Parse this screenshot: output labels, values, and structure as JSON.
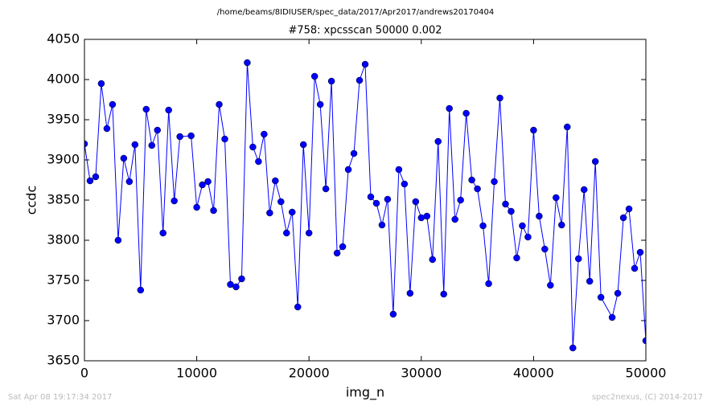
{
  "chart_data": {
    "type": "line",
    "suptitle": "/home/beams/8IDIUSER/spec_data/2017/Apr2017/andrews20170404",
    "title": "#758: xpcsscan 50000 0.002",
    "xlabel": "img_n",
    "ylabel": "ccdc",
    "timestamp": "Sat Apr 08 19:17:34 2017",
    "credit": "spec2nexus, (C) 2014-2017",
    "xlim": [
      0,
      50000
    ],
    "xticks": [
      0,
      10000,
      20000,
      30000,
      40000,
      50000
    ],
    "ylim": [
      3650,
      4050
    ],
    "yticks": [
      3650,
      3700,
      3750,
      3800,
      3850,
      3900,
      3950,
      4000,
      4050
    ],
    "grid": false,
    "series": [
      {
        "color": "#0000ff",
        "x": [
          0,
          500,
          1000,
          1500,
          2000,
          2500,
          3000,
          3500,
          4000,
          4500,
          5000,
          5500,
          6000,
          6500,
          7000,
          7500,
          8000,
          8500,
          9500,
          10000,
          10500,
          11000,
          11500,
          12000,
          12500,
          13000,
          13500,
          14000,
          14500,
          15000,
          15500,
          16000,
          16500,
          17000,
          17500,
          18000,
          18500,
          19000,
          19500,
          20000,
          20500,
          21000,
          21500,
          22000,
          22500,
          23000,
          23500,
          24000,
          24500,
          25000,
          25500,
          26000,
          26500,
          27000,
          27500,
          28000,
          28500,
          29000,
          29500,
          30000,
          30500,
          31000,
          31500,
          32000,
          32500,
          33000,
          33500,
          34000,
          34500,
          35000,
          35500,
          36000,
          36500,
          37000,
          37500,
          38000,
          38500,
          39000,
          39500,
          40000,
          40500,
          41000,
          41500,
          42000,
          42500,
          43000,
          43500,
          44000,
          44500,
          45000,
          45500,
          46000,
          47000,
          47500,
          48000,
          48500,
          49000,
          49500,
          50000
        ],
        "values": [
          3920,
          3874,
          3879,
          3995,
          3939,
          3969,
          3800,
          3902,
          3873,
          3919,
          3738,
          3963,
          3918,
          3937,
          3809,
          3962,
          3849,
          3929,
          3930,
          3841,
          3869,
          3873,
          3837,
          3969,
          3926,
          3745,
          3742,
          3752,
          4021,
          3916,
          3898,
          3932,
          3834,
          3874,
          3848,
          3809,
          3835,
          3717,
          3919,
          3809,
          4004,
          3969,
          3864,
          3998,
          3784,
          3792,
          3888,
          3908,
          3999,
          4019,
          3854,
          3846,
          3819,
          3851,
          3708,
          3888,
          3870,
          3734,
          3848,
          3828,
          3830,
          3776,
          3923,
          3733,
          3964,
          3826,
          3850,
          3958,
          3875,
          3864,
          3818,
          3746,
          3873,
          3977,
          3845,
          3836,
          3778,
          3818,
          3804,
          3937,
          3830,
          3789,
          3744,
          3853,
          3819,
          3941,
          3666,
          3777,
          3863,
          3749,
          3898,
          3729,
          3704,
          3734,
          3828,
          3839,
          3765,
          3785,
          3675
        ]
      }
    ]
  }
}
